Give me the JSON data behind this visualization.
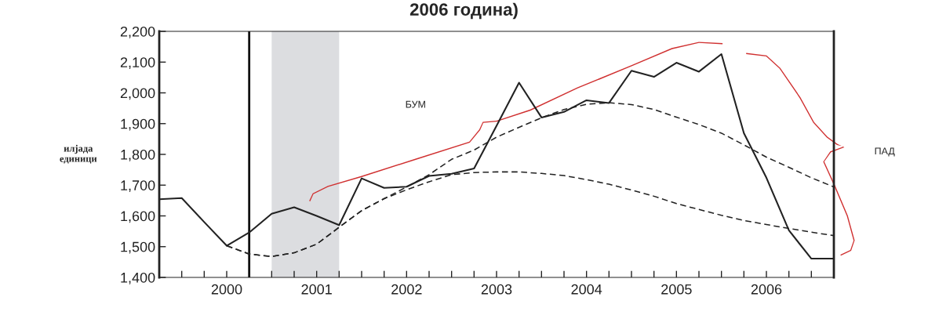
{
  "chart_data": {
    "type": "line",
    "title": "2006 година)",
    "ylabel": "илјада\nединици",
    "xlim": [
      1999.75,
      2007.25
    ],
    "xticks": [
      {
        "value": 1999.75,
        "label": null
      },
      {
        "value": 2000.0,
        "label": null
      },
      {
        "value": 2000.25,
        "label": null
      },
      {
        "value": 2000.5,
        "label": "2000"
      },
      {
        "value": 2000.75,
        "label": null
      },
      {
        "value": 2001.0,
        "label": null
      },
      {
        "value": 2001.25,
        "label": null
      },
      {
        "value": 2001.5,
        "label": "2001"
      },
      {
        "value": 2001.75,
        "label": null
      },
      {
        "value": 2002.0,
        "label": null
      },
      {
        "value": 2002.25,
        "label": null
      },
      {
        "value": 2002.5,
        "label": "2002"
      },
      {
        "value": 2002.75,
        "label": null
      },
      {
        "value": 2003.0,
        "label": null
      },
      {
        "value": 2003.25,
        "label": null
      },
      {
        "value": 2003.5,
        "label": "2003"
      },
      {
        "value": 2003.75,
        "label": null
      },
      {
        "value": 2004.0,
        "label": null
      },
      {
        "value": 2004.25,
        "label": null
      },
      {
        "value": 2004.5,
        "label": "2004"
      },
      {
        "value": 2004.75,
        "label": null
      },
      {
        "value": 2005.0,
        "label": null
      },
      {
        "value": 2005.25,
        "label": null
      },
      {
        "value": 2005.5,
        "label": "2005"
      },
      {
        "value": 2005.75,
        "label": null
      },
      {
        "value": 2006.0,
        "label": null
      },
      {
        "value": 2006.25,
        "label": null
      },
      {
        "value": 2006.5,
        "label": "2006"
      },
      {
        "value": 2006.75,
        "label": null
      },
      {
        "value": 2007.0,
        "label": null
      },
      {
        "value": 2007.25,
        "label": null
      }
    ],
    "ylim": [
      1400,
      2200
    ],
    "yticks": [
      {
        "value": 1400,
        "label": "1,400"
      },
      {
        "value": 1500,
        "label": "1,500"
      },
      {
        "value": 1600,
        "label": "1,600"
      },
      {
        "value": 1700,
        "label": "1,700"
      },
      {
        "value": 1800,
        "label": "1,800"
      },
      {
        "value": 1900,
        "label": "1,900"
      },
      {
        "value": 2000,
        "label": "2,000"
      },
      {
        "value": 2100,
        "label": "2,100"
      },
      {
        "value": 2200,
        "label": "2,200"
      }
    ],
    "grid": false,
    "legend": false,
    "series": [
      {
        "color": "#222222",
        "line_style": "solid",
        "x": [
          1999.75,
          2000.0,
          2000.25,
          2000.5,
          2000.75,
          2001.0,
          2001.25,
          2001.5,
          2001.75,
          2002.0,
          2002.25,
          2002.5,
          2002.75,
          2003.0,
          2003.25,
          2003.5,
          2003.75,
          2004.0,
          2004.25,
          2004.5,
          2004.75,
          2005.0,
          2005.25,
          2005.5,
          2005.75,
          2006.0,
          2006.25,
          2006.5,
          2006.75,
          2007.0,
          2007.25
        ],
        "values": [
          1654,
          1658,
          1580,
          1503,
          1546,
          1607,
          1628,
          1600,
          1570,
          1722,
          1691,
          1695,
          1730,
          1737,
          1754,
          1893,
          2033,
          1920,
          1938,
          1976,
          1967,
          2072,
          2052,
          2098,
          2069,
          2126,
          1869,
          1724,
          1553,
          1461,
          1461
        ]
      },
      {
        "color": "#222222",
        "line_style": "dashed",
        "x": [
          2000.5,
          2000.75,
          2001.0,
          2001.25,
          2001.5,
          2001.75,
          2002.0,
          2002.25,
          2002.5,
          2002.75,
          2003.0,
          2003.25,
          2003.5,
          2003.75,
          2004.0,
          2004.25,
          2004.5,
          2004.75,
          2005.0,
          2005.25,
          2005.5,
          2005.75,
          2006.0,
          2006.25,
          2006.5,
          2006.75,
          2007.0,
          2007.25
        ],
        "values": [
          1503,
          1476,
          1468,
          1480,
          1508,
          1563,
          1617,
          1656,
          1694,
          1734,
          1784,
          1814,
          1856,
          1888,
          1919,
          1946,
          1963,
          1968,
          1962,
          1946,
          1921,
          1897,
          1869,
          1831,
          1791,
          1758,
          1724,
          1694
        ]
      },
      {
        "color": "#222222",
        "line_style": "dashed",
        "x": [
          2000.5,
          2000.75,
          2001.0,
          2001.25,
          2001.5,
          2001.75,
          2002.0,
          2002.25,
          2002.5,
          2002.75,
          2003.0,
          2003.25,
          2003.5,
          2003.75,
          2004.0,
          2004.25,
          2004.5,
          2004.75,
          2005.0,
          2005.25,
          2005.5,
          2005.75,
          2006.0,
          2006.25,
          2006.5,
          2006.75,
          2007.0,
          2007.25
        ],
        "values": [
          1503,
          1476,
          1468,
          1480,
          1508,
          1563,
          1617,
          1656,
          1685,
          1711,
          1734,
          1741,
          1743,
          1743,
          1738,
          1731,
          1718,
          1703,
          1684,
          1664,
          1640,
          1621,
          1602,
          1585,
          1572,
          1559,
          1547,
          1536
        ]
      }
    ],
    "ref_lines": [
      {
        "axis": "x",
        "value": 2000.75,
        "color": "#111111",
        "line_style": "solid"
      }
    ],
    "bands": [
      {
        "axis": "x",
        "from": 2001.0,
        "to": 2001.75,
        "color": "#dcdde0"
      }
    ],
    "annotations": [
      "БУМ",
      "ПАД"
    ]
  }
}
